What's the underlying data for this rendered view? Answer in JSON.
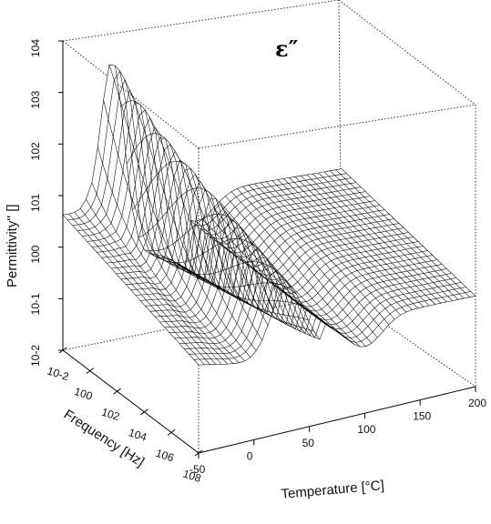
{
  "chart_data": {
    "type": "surface3d",
    "title": "ε″",
    "xlabel": "Temperature [°C]",
    "ylabel": "Frequency [Hz]",
    "zlabel": "Permittivity'' []",
    "x_ticks": [
      -50,
      0,
      50,
      100,
      150,
      200
    ],
    "y_ticks": [
      "10-2",
      "100",
      "102",
      "104",
      "106",
      "108"
    ],
    "z_ticks": [
      "10-2",
      "10-1",
      "100",
      "101",
      "102",
      "103",
      "104"
    ],
    "x_range": [
      -50,
      200
    ],
    "y_range_log10": [
      -2,
      8
    ],
    "z_range_log10": [
      -2,
      4
    ],
    "grid": false,
    "surface_summary": {
      "peak_temperature_c": -36,
      "peak_log10_frequency": -2,
      "peak_log10_permittivity": 3.1,
      "valley_temperature_c": 55,
      "high_temperature_log10_permittivity": -0.5
    }
  }
}
